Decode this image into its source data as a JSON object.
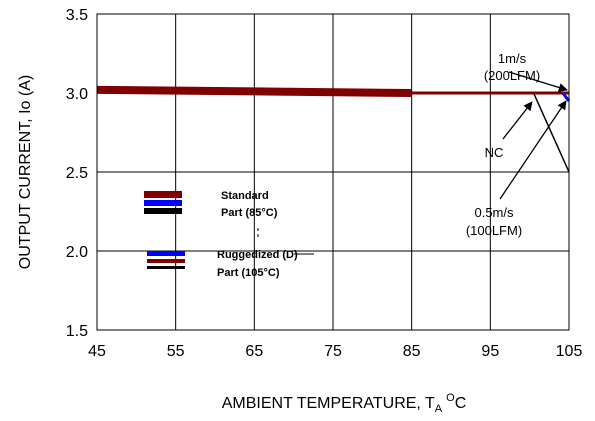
{
  "chart_data": {
    "type": "line",
    "xlabel": "AMBIENT TEMPERATURE, T",
    "xlabel_sub": "A",
    "xlabel_unit_sup": "O",
    "xlabel_unit": "C",
    "ylabel": "OUTPUT CURRENT, Io    (A)",
    "xlim": [
      45,
      105
    ],
    "ylim": [
      1.5,
      3.5
    ],
    "xticks": [
      "45",
      "55",
      "65",
      "75",
      "85",
      "95",
      "105"
    ],
    "yticks": [
      "1.5",
      "2.0",
      "2.5",
      "3.0",
      "3.5"
    ],
    "grid": "vertical and horizontal",
    "colors": {
      "standard_maroon": "#800000",
      "standard_blue": "#0000ff",
      "standard_black": "#000000",
      "ruggedized_blue": "#0000ff",
      "ruggedized_maroon": "#800000",
      "ruggedized_black": "#000000",
      "nc": "#000000"
    },
    "series": [
      {
        "key": "standard_maroon",
        "x": [
          45,
          85
        ],
        "y": [
          3.02,
          3.0
        ]
      },
      {
        "key": "ruggedized_maroon",
        "x": [
          85,
          105
        ],
        "y": [
          3.0,
          3.0
        ]
      },
      {
        "key": "ruggedized_blue",
        "x": [
          104.2,
          105
        ],
        "y": [
          3.0,
          2.95
        ]
      },
      {
        "key": "nc",
        "x": [
          100.5,
          105
        ],
        "y": [
          3.0,
          2.5
        ]
      }
    ],
    "legend": [
      {
        "label": "Standard",
        "label2": "Part (85°C)",
        "colors": [
          "#800000",
          "#0000ff",
          "#000000"
        ]
      },
      {
        "label": "Ruggedized (D)",
        "label2": "Part (105°C)",
        "colors": [
          "#0000ff",
          "#800000",
          "#000000"
        ]
      }
    ],
    "annotations": [
      {
        "id": "ann1",
        "lines": [
          "1m/s",
          "(200LFM)"
        ]
      },
      {
        "id": "ann2",
        "lines": [
          "NC"
        ]
      },
      {
        "id": "ann3",
        "lines": [
          "0.5m/s",
          "(100LFM)"
        ]
      }
    ]
  }
}
